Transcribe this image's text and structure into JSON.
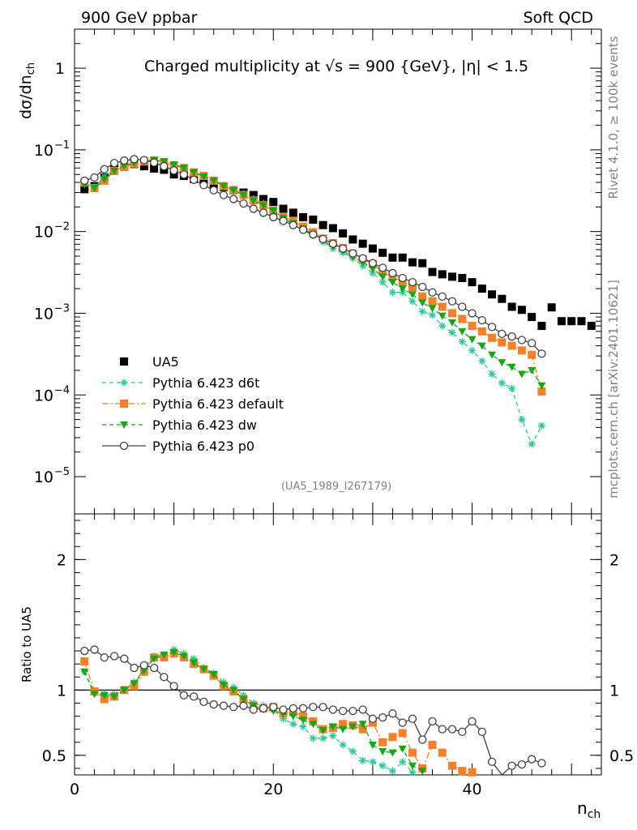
{
  "header": {
    "left": "900 GeV ppbar",
    "right": "Soft QCD"
  },
  "side_labels": {
    "right_top": "Rivet 4.1.0, ≥ 100k events",
    "right_bottom": "mcplots.cern.ch [arXiv:2401.10621]"
  },
  "colors": {
    "UA5": "#000000",
    "d6t": "#2bc99a",
    "default": "#f5802a",
    "dw": "#14a814",
    "p0": "#404040"
  },
  "chart_data": [
    {
      "type": "scatter",
      "panel": "main",
      "title": "Charged multiplicity at √s = 900 {GeV}, |η| < 1.5",
      "analysis_tag": "(UA5_1989_I267179)",
      "ylabel": "dσ/dn_ch",
      "yscale": "log",
      "ylim": [
        3.5e-06,
        3
      ],
      "xlim": [
        0,
        53
      ],
      "yticks": [
        1e-05,
        0.0001,
        0.001,
        0.01,
        0.1,
        1
      ],
      "ytick_labels": [
        [
          "10",
          "−5"
        ],
        [
          "10",
          "−4"
        ],
        [
          "10",
          "−3"
        ],
        [
          "10",
          "−2"
        ],
        [
          "10",
          "−1"
        ],
        [
          "1",
          ""
        ]
      ],
      "legend_location": "lower-left",
      "series": [
        {
          "name": "UA5",
          "key": "UA5",
          "marker": "square",
          "line": "none",
          "x": [
            1,
            2,
            3,
            4,
            5,
            6,
            7,
            8,
            9,
            10,
            11,
            12,
            13,
            14,
            15,
            16,
            17,
            18,
            19,
            20,
            21,
            22,
            23,
            24,
            25,
            26,
            27,
            28,
            29,
            30,
            31,
            32,
            33,
            34,
            35,
            36,
            37,
            38,
            39,
            40,
            41,
            42,
            43,
            44,
            45,
            46,
            47,
            48,
            49,
            50,
            51,
            52
          ],
          "y": [
            0.033,
            0.036,
            0.046,
            0.058,
            0.062,
            0.067,
            0.063,
            0.059,
            0.057,
            0.05,
            0.048,
            0.044,
            0.041,
            0.038,
            0.035,
            0.032,
            0.03,
            0.028,
            0.025,
            0.023,
            0.019,
            0.017,
            0.015,
            0.014,
            0.012,
            0.011,
            0.0095,
            0.008,
            0.0071,
            0.0062,
            0.0055,
            0.0048,
            0.0048,
            0.0042,
            0.0041,
            0.0032,
            0.003,
            0.0028,
            0.0027,
            0.0024,
            0.002,
            0.0017,
            0.0015,
            0.0012,
            0.0011,
            0.0009,
            0.0007,
            0.00118,
            0.0008,
            0.0008,
            0.0008,
            0.0007
          ]
        },
        {
          "name": "Pythia 6.423 d6t",
          "key": "d6t",
          "marker": "star",
          "line": "dashed",
          "x": [
            1,
            2,
            3,
            4,
            5,
            6,
            7,
            8,
            9,
            10,
            11,
            12,
            13,
            14,
            15,
            16,
            17,
            18,
            19,
            20,
            21,
            22,
            23,
            24,
            25,
            26,
            27,
            28,
            29,
            30,
            31,
            32,
            33,
            34,
            35,
            36,
            37,
            38,
            39,
            40,
            41,
            42,
            43,
            44,
            45,
            46,
            47
          ],
          "y": [
            0.038,
            0.035,
            0.047,
            0.057,
            0.063,
            0.07,
            0.073,
            0.075,
            0.072,
            0.066,
            0.061,
            0.054,
            0.048,
            0.043,
            0.037,
            0.033,
            0.029,
            0.025,
            0.022,
            0.018,
            0.0145,
            0.0124,
            0.0105,
            0.0089,
            0.0075,
            0.0062,
            0.0055,
            0.0047,
            0.0038,
            0.0031,
            0.0024,
            0.0018,
            0.0018,
            0.0014,
            0.00105,
            0.00095,
            0.0007,
            0.00058,
            0.00045,
            0.00035,
            0.00026,
            0.00018,
            0.00014,
            0.00012,
            5e-05,
            2.5e-05,
            4.2e-05
          ]
        },
        {
          "name": "Pythia 6.423 default",
          "key": "default",
          "marker": "square",
          "line": "dashdot",
          "x": [
            1,
            2,
            3,
            4,
            5,
            6,
            7,
            8,
            9,
            10,
            11,
            12,
            13,
            14,
            15,
            16,
            17,
            18,
            19,
            20,
            21,
            22,
            23,
            24,
            25,
            26,
            27,
            28,
            29,
            30,
            31,
            32,
            33,
            34,
            35,
            36,
            37,
            38,
            39,
            40,
            41,
            42,
            43,
            44,
            45,
            46,
            47
          ],
          "y": [
            0.04,
            0.034,
            0.042,
            0.055,
            0.062,
            0.068,
            0.072,
            0.074,
            0.071,
            0.064,
            0.06,
            0.053,
            0.048,
            0.042,
            0.036,
            0.032,
            0.028,
            0.024,
            0.021,
            0.018,
            0.015,
            0.0135,
            0.0115,
            0.0098,
            0.0082,
            0.0072,
            0.0063,
            0.0054,
            0.0046,
            0.004,
            0.0032,
            0.0028,
            0.0024,
            0.0021,
            0.0016,
            0.0014,
            0.0012,
            0.001,
            0.00085,
            0.0007,
            0.0006,
            0.0005,
            0.00044,
            0.0004,
            0.00035,
            0.00031,
            0.00011
          ]
        },
        {
          "name": "Pythia 6.423 dw",
          "key": "dw",
          "marker": "triangle-down",
          "line": "dashed",
          "x": [
            1,
            2,
            3,
            4,
            5,
            6,
            7,
            8,
            9,
            10,
            11,
            12,
            13,
            14,
            15,
            16,
            17,
            18,
            19,
            20,
            21,
            22,
            23,
            24,
            25,
            26,
            27,
            28,
            29,
            30,
            31,
            32,
            33,
            34,
            35,
            36,
            37,
            38,
            39,
            40,
            41,
            42,
            43,
            44,
            45,
            46,
            47
          ],
          "y": [
            0.038,
            0.034,
            0.044,
            0.055,
            0.064,
            0.069,
            0.073,
            0.075,
            0.072,
            0.066,
            0.06,
            0.053,
            0.047,
            0.042,
            0.036,
            0.032,
            0.028,
            0.024,
            0.021,
            0.018,
            0.0145,
            0.0126,
            0.0108,
            0.0092,
            0.0077,
            0.0066,
            0.0058,
            0.0049,
            0.0042,
            0.0035,
            0.0028,
            0.0024,
            0.002,
            0.0017,
            0.00135,
            0.00115,
            0.00093,
            0.00077,
            0.0006,
            0.00048,
            0.0004,
            0.00031,
            0.00025,
            0.00022,
            0.00018,
            0.0002,
            0.00013
          ]
        },
        {
          "name": "Pythia 6.423 p0",
          "key": "p0",
          "marker": "open-circle",
          "line": "solid",
          "x": [
            1,
            2,
            3,
            4,
            5,
            6,
            7,
            8,
            9,
            10,
            11,
            12,
            13,
            14,
            15,
            16,
            17,
            18,
            19,
            20,
            21,
            22,
            23,
            24,
            25,
            26,
            27,
            28,
            29,
            30,
            31,
            32,
            33,
            34,
            35,
            36,
            37,
            38,
            39,
            40,
            41,
            42,
            43,
            44,
            45,
            46,
            47
          ],
          "y": [
            0.042,
            0.046,
            0.058,
            0.069,
            0.074,
            0.077,
            0.075,
            0.07,
            0.063,
            0.056,
            0.05,
            0.043,
            0.037,
            0.032,
            0.028,
            0.025,
            0.022,
            0.019,
            0.017,
            0.015,
            0.0135,
            0.012,
            0.0105,
            0.0092,
            0.0081,
            0.0071,
            0.0062,
            0.0054,
            0.0047,
            0.0041,
            0.0036,
            0.0031,
            0.0027,
            0.0024,
            0.0021,
            0.0018,
            0.0016,
            0.0014,
            0.0012,
            0.001,
            0.00082,
            0.00068,
            0.00056,
            0.00052,
            0.00047,
            0.00043,
            0.00032
          ]
        }
      ]
    },
    {
      "type": "scatter",
      "panel": "ratio",
      "ylabel": "Ratio to UA5",
      "xlabel": "n_ch",
      "ylim": [
        0.35,
        2.35
      ],
      "xlim": [
        0,
        53
      ],
      "yticks": [
        0.5,
        1,
        2
      ],
      "ytick_labels": [
        "0.5",
        "1",
        "2"
      ],
      "xticks": [
        0,
        20,
        40
      ],
      "xtick_labels": [
        "0",
        "20",
        "40"
      ],
      "reference_line": 1,
      "series": [
        {
          "name": "Pythia 6.423 d6t",
          "key": "d6t",
          "marker": "star",
          "line": "dashed",
          "x": [
            1,
            2,
            3,
            4,
            5,
            6,
            7,
            8,
            9,
            10,
            11,
            12,
            13,
            14,
            15,
            16,
            17,
            18,
            19,
            20,
            21,
            22,
            23,
            24,
            25,
            26,
            27,
            28,
            29,
            30,
            31,
            32,
            33,
            34
          ],
          "y": [
            1.14,
            0.98,
            0.97,
            0.97,
            1.0,
            1.06,
            1.16,
            1.26,
            1.27,
            1.31,
            1.28,
            1.24,
            1.17,
            1.13,
            1.06,
            1.02,
            0.96,
            0.9,
            0.88,
            0.85,
            0.78,
            0.74,
            0.72,
            0.63,
            0.63,
            0.65,
            0.58,
            0.53,
            0.46,
            0.45,
            0.42,
            0.38,
            0.45,
            0.37
          ]
        },
        {
          "name": "Pythia 6.423 default",
          "key": "default",
          "marker": "square",
          "line": "dashdot",
          "x": [
            1,
            2,
            3,
            4,
            5,
            6,
            7,
            8,
            9,
            10,
            11,
            12,
            13,
            14,
            15,
            16,
            17,
            18,
            19,
            20,
            21,
            22,
            23,
            24,
            25,
            26,
            27,
            28,
            29,
            30,
            31,
            32,
            33,
            34,
            35,
            36,
            37,
            38,
            39,
            40
          ],
          "y": [
            1.22,
            0.99,
            0.93,
            0.95,
            1.0,
            1.03,
            1.14,
            1.25,
            1.25,
            1.28,
            1.25,
            1.2,
            1.16,
            1.11,
            1.03,
            0.99,
            0.93,
            0.88,
            0.86,
            0.87,
            0.82,
            0.83,
            0.8,
            0.76,
            0.7,
            0.71,
            0.74,
            0.73,
            0.7,
            0.75,
            0.6,
            0.64,
            0.67,
            0.52,
            0.4,
            0.58,
            0.52,
            0.42,
            0.38,
            0.37
          ]
        },
        {
          "name": "Pythia 6.423 dw",
          "key": "dw",
          "marker": "triangle-down",
          "line": "dashed",
          "x": [
            1,
            2,
            3,
            4,
            5,
            6,
            7,
            8,
            9,
            10,
            11,
            12,
            13,
            14,
            15,
            16,
            17,
            18,
            19,
            20,
            21,
            22,
            23,
            24,
            25,
            26,
            27,
            28,
            29,
            30,
            31,
            32,
            33,
            34,
            35
          ],
          "y": [
            1.14,
            0.97,
            0.96,
            0.95,
            1.0,
            1.05,
            1.15,
            1.24,
            1.27,
            1.29,
            1.26,
            1.21,
            1.16,
            1.12,
            1.04,
            1.0,
            0.93,
            0.88,
            0.85,
            0.84,
            0.82,
            0.8,
            0.77,
            0.74,
            0.69,
            0.72,
            0.7,
            0.72,
            0.74,
            0.58,
            0.53,
            0.52,
            0.55,
            0.42,
            0.38
          ]
        },
        {
          "name": "Pythia 6.423 p0",
          "key": "p0",
          "marker": "open-circle",
          "line": "solid",
          "x": [
            1,
            2,
            3,
            4,
            5,
            6,
            7,
            8,
            9,
            10,
            11,
            12,
            13,
            14,
            15,
            16,
            17,
            18,
            19,
            20,
            21,
            22,
            23,
            24,
            25,
            26,
            27,
            28,
            29,
            30,
            31,
            32,
            33,
            34,
            35,
            36,
            37,
            38,
            39,
            40,
            41,
            42,
            43,
            44,
            45,
            46,
            47
          ],
          "y": [
            1.3,
            1.31,
            1.25,
            1.26,
            1.24,
            1.17,
            1.19,
            1.17,
            1.1,
            1.03,
            0.96,
            0.95,
            0.91,
            0.89,
            0.88,
            0.87,
            0.88,
            0.85,
            0.86,
            0.87,
            0.85,
            0.86,
            0.86,
            0.87,
            0.87,
            0.85,
            0.84,
            0.84,
            0.85,
            0.78,
            0.79,
            0.82,
            0.75,
            0.78,
            0.62,
            0.76,
            0.7,
            0.7,
            0.68,
            0.76,
            0.68,
            0.45,
            0.33,
            0.42,
            0.43,
            0.47,
            0.44
          ]
        }
      ]
    }
  ]
}
